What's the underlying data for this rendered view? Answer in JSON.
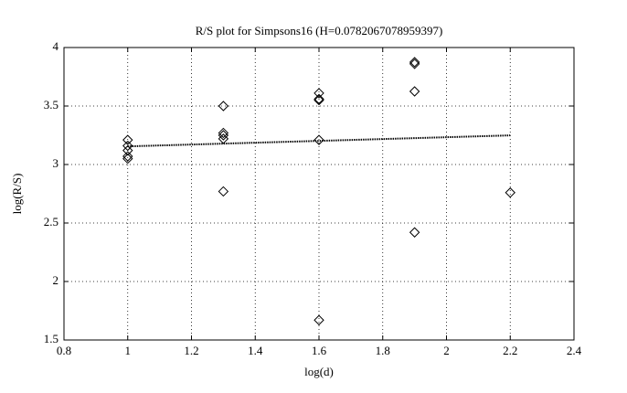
{
  "chart_data": {
    "type": "scatter",
    "title": "R/S plot for Simpsons16 (H=0.0782067078959397)",
    "xlabel": "log(d)",
    "ylabel": "log(R/S)",
    "xlim": [
      0.8,
      2.4
    ],
    "xticks": [
      0.8,
      1,
      1.2,
      1.4,
      1.6,
      1.8,
      2,
      2.2,
      2.4
    ],
    "ylim": [
      1.5,
      4
    ],
    "yticks": [
      1.5,
      2,
      2.5,
      3,
      3.5,
      4
    ],
    "grid": true,
    "series": [
      {
        "type": "scatter",
        "marker": "diamond",
        "color": "#000000",
        "x": [
          1,
          1,
          1,
          1,
          1,
          1.3,
          1.3,
          1.3,
          1.3,
          1.3,
          1.6,
          1.6,
          1.6,
          1.6,
          1.6,
          1.9,
          1.9,
          1.9,
          1.9,
          2.2
        ],
        "values": [
          3.21,
          3.16,
          3.12,
          3.07,
          3.05,
          3.5,
          3.27,
          3.25,
          3.22,
          2.77,
          3.61,
          3.56,
          3.55,
          3.21,
          1.67,
          3.875,
          3.86,
          3.625,
          2.42,
          2.76
        ]
      },
      {
        "type": "line",
        "color": "#000000",
        "x": [
          1,
          2.2
        ],
        "values": [
          3.155,
          3.249
        ]
      }
    ]
  }
}
